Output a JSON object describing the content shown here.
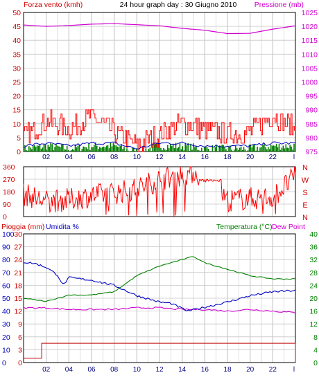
{
  "colors": {
    "wind": "#ff0000",
    "gust": "#008000",
    "wind_avg": "#0000c0",
    "pressure": "#d000d0",
    "rain": "#c00000",
    "humidity": "#0000c0",
    "temperature": "#008000",
    "dew_point": "#d000d0",
    "grid": "#c8c8c8",
    "frame": "#000000"
  },
  "chart_data": [
    {
      "type": "line",
      "title": "24 hour graph day : 30 Giugno 2010",
      "left_axis_label": "Forza vento (kmh)",
      "right_axis_label": "Pressione (mb)",
      "x_ticks": [
        "02",
        "04",
        "06",
        "08",
        "10",
        "12",
        "14",
        "16",
        "18",
        "20",
        "22",
        "l"
      ],
      "left_ticks": [
        "0",
        "5",
        "10",
        "15",
        "20",
        "25",
        "30",
        "35",
        "40",
        "45",
        "50"
      ],
      "right_ticks": [
        "975",
        "980",
        "985",
        "990",
        "995",
        "1000",
        "1005",
        "1010",
        "1015",
        "1020",
        "1025"
      ],
      "ylim_left": [
        0,
        50
      ],
      "ylim_right": [
        975,
        1025
      ],
      "grid": true,
      "series": [
        {
          "key": "pressure",
          "axis": "right",
          "x": [
            0,
            2,
            4,
            6,
            8,
            10,
            12,
            14,
            16,
            18,
            20,
            22,
            24
          ],
          "values": [
            1020.5,
            1020.0,
            1020.3,
            1020.8,
            1021.0,
            1020.6,
            1020.2,
            1019.3,
            1018.6,
            1017.4,
            1017.5,
            1019.0,
            1020.2
          ]
        },
        {
          "key": "wind",
          "axis": "left",
          "x": [
            0,
            2,
            4,
            6,
            8,
            10,
            12,
            14,
            16,
            18,
            20,
            22,
            24
          ],
          "values": [
            5,
            11,
            8,
            13,
            7,
            2,
            6,
            10,
            8,
            6,
            7,
            13,
            8
          ]
        },
        {
          "key": "wind_avg",
          "axis": "left",
          "x": [
            0,
            2,
            4,
            6,
            8,
            10,
            12,
            14,
            16,
            18,
            20,
            22,
            24
          ],
          "values": [
            2,
            3,
            2,
            3,
            3,
            1,
            3,
            3,
            2,
            2,
            2,
            3,
            3
          ]
        },
        {
          "key": "gust",
          "axis": "left",
          "x": [
            0,
            2,
            4,
            6,
            8,
            10,
            12,
            14,
            16,
            18,
            20,
            22,
            24
          ],
          "values": [
            1,
            2,
            1,
            2,
            2,
            0,
            2,
            2,
            1,
            1,
            1,
            2,
            2
          ]
        }
      ]
    },
    {
      "type": "line",
      "left_ticks": [
        "360",
        "270",
        "180",
        "90",
        "0"
      ],
      "right_ticks": [
        "N",
        "W",
        "S",
        "E",
        "N"
      ],
      "ylim": [
        0,
        360
      ],
      "grid": true,
      "series": [
        {
          "key": "wind_dir",
          "x": [
            0,
            2,
            4,
            6,
            8,
            10,
            12,
            14,
            15,
            16,
            18,
            20,
            22,
            24
          ],
          "values": [
            160,
            110,
            120,
            150,
            170,
            200,
            270,
            300,
            320,
            280,
            120,
            130,
            140,
            290
          ]
        }
      ]
    },
    {
      "type": "line",
      "left_labels": [
        "Pioggia (mm)",
        "Umidita %"
      ],
      "right_labels": [
        "Temperatura (°C)",
        "Dew Point"
      ],
      "rain_ticks": [
        "0",
        "3",
        "6",
        "9",
        "12",
        "15",
        "18",
        "21",
        "24",
        "27",
        "30"
      ],
      "humidity_ticks": [
        "0",
        "10",
        "20",
        "30",
        "40",
        "50",
        "60",
        "70",
        "80",
        "90",
        "100"
      ],
      "temp_ticks": [
        "0",
        "4",
        "8",
        "12",
        "16",
        "20",
        "24",
        "28",
        "32",
        "36",
        "40"
      ],
      "ylim_humidity": [
        0,
        100
      ],
      "ylim_temp": [
        0,
        40
      ],
      "ylim_rain": [
        0,
        30
      ],
      "grid": true,
      "series": [
        {
          "key": "humidity",
          "axis": "humidity",
          "x": [
            0,
            1,
            2,
            3,
            3.5,
            4,
            6,
            8,
            10,
            12,
            13,
            14,
            14.5,
            15,
            16,
            18,
            20,
            22,
            24
          ],
          "values": [
            78,
            77,
            74,
            68,
            60,
            66,
            64,
            60,
            52,
            47,
            46,
            42,
            40,
            41,
            43,
            47,
            52,
            55,
            56
          ]
        },
        {
          "key": "temperature",
          "axis": "temp",
          "x": [
            0,
            2,
            4,
            6,
            8,
            10,
            12,
            14,
            15,
            16,
            18,
            20,
            22,
            24
          ],
          "values": [
            20,
            19,
            21,
            21,
            22,
            27,
            30,
            32,
            33,
            31,
            29,
            27,
            26,
            26
          ]
        },
        {
          "key": "dew_point",
          "axis": "temp",
          "x": [
            0,
            2,
            4,
            6,
            8,
            10,
            12,
            14,
            16,
            18,
            20,
            22,
            24
          ],
          "values": [
            17,
            17,
            16.5,
            16.5,
            16.5,
            17,
            17,
            16.5,
            16.5,
            16,
            16.5,
            16,
            15.5
          ]
        },
        {
          "key": "rain",
          "axis": "rain",
          "x": [
            0,
            1,
            1.01,
            24
          ],
          "values": [
            1,
            1,
            4.5,
            4.5
          ]
        }
      ]
    }
  ]
}
